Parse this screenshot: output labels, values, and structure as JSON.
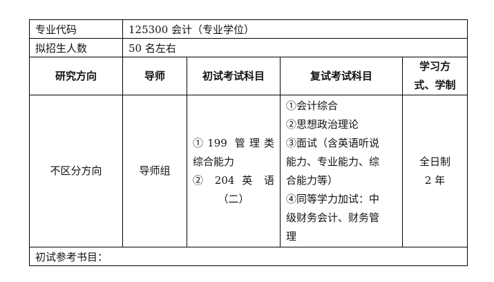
{
  "major_code": {
    "label": "专业代码",
    "value": "125300 会计（专业学位）"
  },
  "enrollment": {
    "label": "拟招生人数",
    "value": "50 名左右"
  },
  "headers": [
    "研究方向",
    "导师",
    "初试考试科目",
    "复试考试科目",
    "学习方式、学制"
  ],
  "header_study_mode_lines": [
    "学习方",
    "式、学制"
  ],
  "row": {
    "direction": "不区分方向",
    "advisor": "导师组",
    "initial_exam": [
      "①199 管理类",
      "综合能力",
      "② 204 英 语",
      "（二）"
    ],
    "retest": [
      "①会计综合",
      "②思想政治理论",
      "③面试（含英语听说",
      "能力、专业能力、综",
      "合能力等）",
      "④同等学力加试：中",
      "级财务会计、财务管",
      "理"
    ],
    "study_mode": [
      "全日制",
      "2 年"
    ]
  },
  "footer": {
    "label": "初试参考书目："
  }
}
